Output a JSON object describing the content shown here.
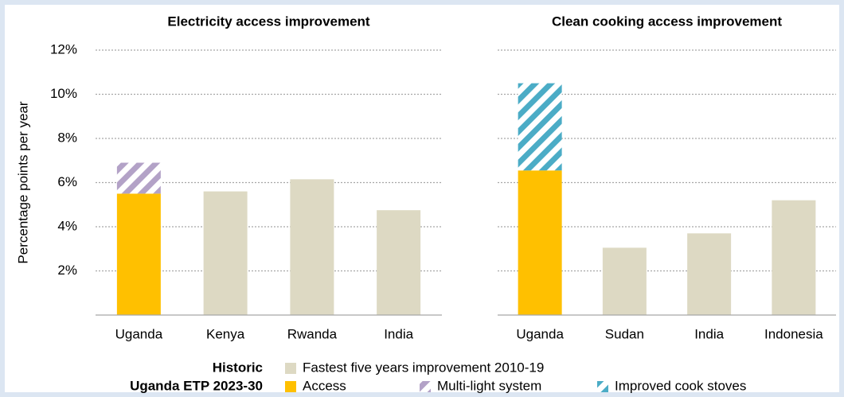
{
  "chart_data": [
    {
      "type": "stacked_bar",
      "title": "Electricity access improvement",
      "ylabel": "Percentage points per year",
      "categories": [
        "Uganda",
        "Kenya",
        "Rwanda",
        "India"
      ],
      "series": [
        {
          "name": "Fastest five years improvement 2010-19",
          "legend_group": "Historic",
          "color": "#ddd9c3",
          "values": [
            null,
            5.6,
            6.15,
            4.75
          ]
        },
        {
          "name": "Access",
          "legend_group": "Uganda ETP 2023-30",
          "color": "#ffc000",
          "values": [
            5.5,
            null,
            null,
            null
          ]
        },
        {
          "name": "Multi-light system",
          "legend_group": "Uganda ETP 2023-30",
          "color": "#b3a2c7",
          "pattern": "hatch",
          "values": [
            1.4,
            null,
            null,
            null
          ]
        }
      ],
      "ylim": [
        0,
        12
      ],
      "yticks": [
        {
          "value": 2,
          "label": "2%"
        },
        {
          "value": 4,
          "label": "4%"
        },
        {
          "value": 6,
          "label": "6%"
        },
        {
          "value": 8,
          "label": "8%"
        },
        {
          "value": 10,
          "label": "10%"
        },
        {
          "value": 12,
          "label": "12%"
        }
      ],
      "grid": true
    },
    {
      "type": "stacked_bar",
      "title": "Clean cooking access improvement",
      "categories": [
        "Uganda",
        "Sudan",
        "India",
        "Indonesia"
      ],
      "series": [
        {
          "name": "Fastest five years improvement 2010-19",
          "legend_group": "Historic",
          "color": "#ddd9c3",
          "values": [
            null,
            3.05,
            3.7,
            5.2
          ]
        },
        {
          "name": "Access",
          "legend_group": "Uganda ETP 2023-30",
          "color": "#ffc000",
          "values": [
            6.55,
            null,
            null,
            null
          ]
        },
        {
          "name": "Improved cook stoves",
          "legend_group": "Uganda ETP 2023-30",
          "color": "#4bacc6",
          "pattern": "hatch",
          "values": [
            3.95,
            null,
            null,
            null
          ]
        }
      ],
      "ylim": [
        0,
        12
      ],
      "yticks": [
        2,
        4,
        6,
        8,
        10,
        12
      ],
      "grid": true
    }
  ]
}
